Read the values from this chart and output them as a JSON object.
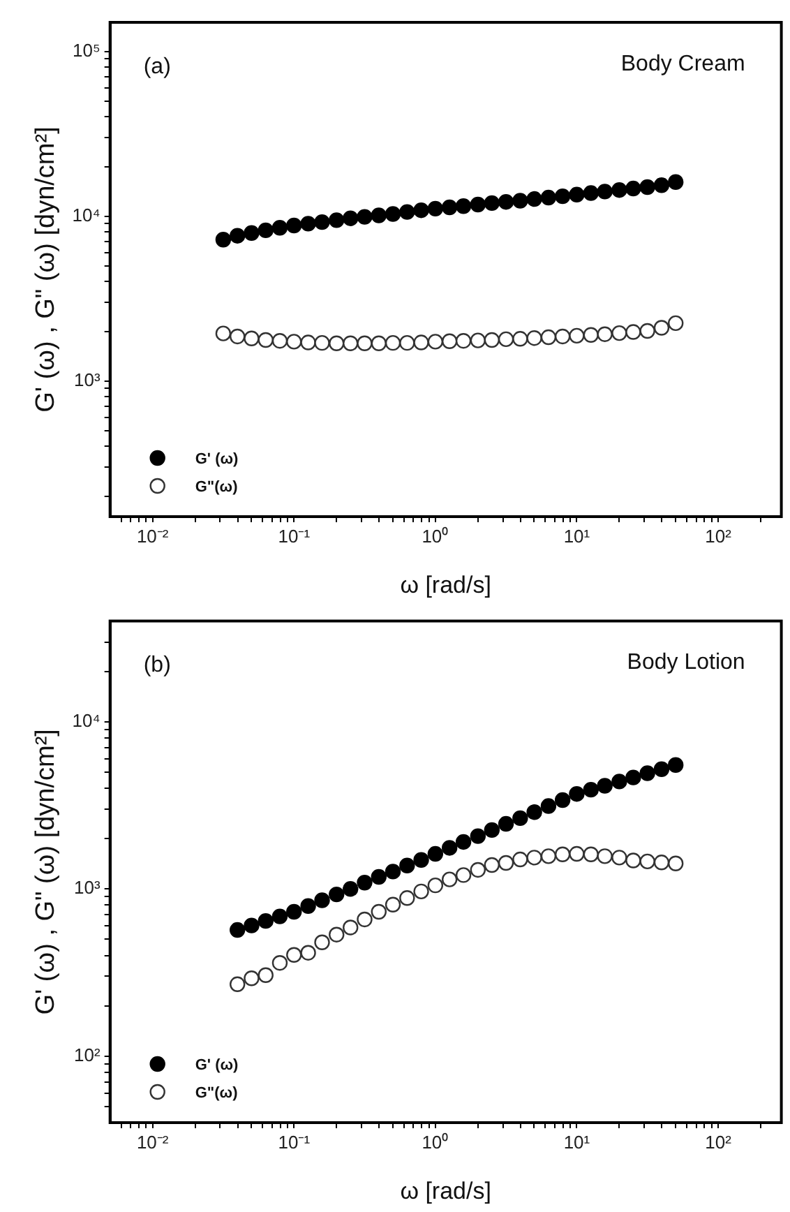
{
  "chart_data": [
    {
      "type": "scatter",
      "xlabel": "ω [rad/s]",
      "ylabel": "G' (ω) , G\" (ω) [dyn/cm²]",
      "annotations": [
        "(a)",
        "Body Cream"
      ],
      "log": "xy",
      "legend": "bottom left",
      "marker": "circle",
      "x": [
        0.0316,
        0.0398,
        0.0501,
        0.0631,
        0.0794,
        0.1,
        0.126,
        0.158,
        0.2,
        0.251,
        0.316,
        0.398,
        0.501,
        0.631,
        0.794,
        1,
        1.26,
        1.58,
        2,
        2.51,
        3.16,
        3.98,
        5.01,
        6.31,
        7.94,
        10,
        12.6,
        15.8,
        20,
        25.1,
        31.6,
        39.8,
        50.1
      ],
      "series": [
        {
          "name": "G' (ω)",
          "color": "#000000",
          "values": [
            7200,
            7600,
            7900,
            8200,
            8500,
            8770,
            9000,
            9200,
            9450,
            9700,
            9900,
            10100,
            10300,
            10600,
            10850,
            11100,
            11300,
            11500,
            11750,
            12000,
            12200,
            12400,
            12700,
            12950,
            13200,
            13500,
            13800,
            14100,
            14400,
            14700,
            15000,
            15400,
            16100
          ]
        },
        {
          "name": "G\"(ω)",
          "color": "#333333",
          "values": [
            1940,
            1860,
            1810,
            1770,
            1750,
            1730,
            1710,
            1700,
            1690,
            1690,
            1690,
            1690,
            1700,
            1700,
            1710,
            1730,
            1740,
            1750,
            1760,
            1770,
            1790,
            1800,
            1820,
            1840,
            1860,
            1880,
            1900,
            1920,
            1950,
            1980,
            2010,
            2100,
            2240
          ]
        }
      ],
      "xlim": [
        0.005,
        280
      ],
      "ylim": [
        150,
        150000
      ],
      "xticks": [
        {
          "value": 0.006,
          "label": null
        },
        {
          "value": 0.007,
          "label": null
        },
        {
          "value": 0.008,
          "label": null
        },
        {
          "value": 0.009,
          "label": null
        },
        {
          "value": 0.01,
          "label": "10⁻²"
        },
        {
          "value": 0.02,
          "label": null
        },
        {
          "value": 0.03,
          "label": null
        },
        {
          "value": 0.04,
          "label": null
        },
        {
          "value": 0.05,
          "label": null
        },
        {
          "value": 0.06,
          "label": null
        },
        {
          "value": 0.07,
          "label": null
        },
        {
          "value": 0.08,
          "label": null
        },
        {
          "value": 0.09,
          "label": null
        },
        {
          "value": 0.1,
          "label": "10⁻¹"
        },
        {
          "value": 0.2,
          "label": null
        },
        {
          "value": 0.3,
          "label": null
        },
        {
          "value": 0.4,
          "label": null
        },
        {
          "value": 0.5,
          "label": null
        },
        {
          "value": 0.6,
          "label": null
        },
        {
          "value": 0.7,
          "label": null
        },
        {
          "value": 0.8,
          "label": null
        },
        {
          "value": 0.9,
          "label": null
        },
        {
          "value": 1,
          "label": "10⁰"
        },
        {
          "value": 2,
          "label": null
        },
        {
          "value": 3,
          "label": null
        },
        {
          "value": 4,
          "label": null
        },
        {
          "value": 5,
          "label": null
        },
        {
          "value": 6,
          "label": null
        },
        {
          "value": 7,
          "label": null
        },
        {
          "value": 8,
          "label": null
        },
        {
          "value": 9,
          "label": null
        },
        {
          "value": 10,
          "label": "10¹"
        },
        {
          "value": 20,
          "label": null
        },
        {
          "value": 30,
          "label": null
        },
        {
          "value": 40,
          "label": null
        },
        {
          "value": 50,
          "label": null
        },
        {
          "value": 60,
          "label": null
        },
        {
          "value": 70,
          "label": null
        },
        {
          "value": 80,
          "label": null
        },
        {
          "value": 90,
          "label": null
        },
        {
          "value": 100,
          "label": "10²"
        },
        {
          "value": 200,
          "label": null
        }
      ],
      "yticks": [
        {
          "value": 200,
          "label": null
        },
        {
          "value": 300,
          "label": null
        },
        {
          "value": 400,
          "label": null
        },
        {
          "value": 500,
          "label": null
        },
        {
          "value": 600,
          "label": null
        },
        {
          "value": 700,
          "label": null
        },
        {
          "value": 800,
          "label": null
        },
        {
          "value": 900,
          "label": null
        },
        {
          "value": 1000,
          "label": "10³"
        },
        {
          "value": 2000,
          "label": null
        },
        {
          "value": 3000,
          "label": null
        },
        {
          "value": 4000,
          "label": null
        },
        {
          "value": 5000,
          "label": null
        },
        {
          "value": 6000,
          "label": null
        },
        {
          "value": 7000,
          "label": null
        },
        {
          "value": 8000,
          "label": null
        },
        {
          "value": 9000,
          "label": null
        },
        {
          "value": 10000,
          "label": "10⁴"
        },
        {
          "value": 20000,
          "label": null
        },
        {
          "value": 30000,
          "label": null
        },
        {
          "value": 40000,
          "label": null
        },
        {
          "value": 50000,
          "label": null
        },
        {
          "value": 60000,
          "label": null
        },
        {
          "value": 70000,
          "label": null
        },
        {
          "value": 80000,
          "label": null
        },
        {
          "value": 90000,
          "label": null
        },
        {
          "value": 100000,
          "label": "10⁵"
        }
      ]
    },
    {
      "type": "scatter",
      "xlabel": "ω [rad/s]",
      "ylabel": "G' (ω) , G\" (ω) [dyn/cm²]",
      "annotations": [
        "(b)",
        "Body Lotion"
      ],
      "log": "xy",
      "legend": "bottom left",
      "marker": "circle",
      "x": [
        0.0398,
        0.0501,
        0.0631,
        0.0794,
        0.1,
        0.126,
        0.158,
        0.2,
        0.251,
        0.316,
        0.398,
        0.501,
        0.631,
        0.794,
        1,
        1.26,
        1.58,
        2,
        2.51,
        3.16,
        3.98,
        5.01,
        6.31,
        7.94,
        10,
        12.6,
        15.8,
        20,
        25.1,
        31.6,
        39.8,
        50.1
      ],
      "series": [
        {
          "name": "G' (ω)",
          "color": "#000000",
          "values": [
            568,
            604,
            643,
            685,
            730,
            790,
            855,
            927,
            1000,
            1090,
            1180,
            1270,
            1380,
            1490,
            1620,
            1760,
            1910,
            2070,
            2250,
            2450,
            2650,
            2880,
            3130,
            3400,
            3700,
            3920,
            4140,
            4390,
            4640,
            4920,
            5200,
            5510
          ]
        },
        {
          "name": "G\"(ω)",
          "color": "#333333",
          "values": [
            269,
            292,
            305,
            361,
            403,
            415,
            479,
            533,
            588,
            657,
            730,
            805,
            882,
            966,
            1050,
            1140,
            1210,
            1300,
            1390,
            1430,
            1500,
            1540,
            1570,
            1610,
            1620,
            1610,
            1570,
            1540,
            1480,
            1460,
            1440,
            1420
          ]
        }
      ],
      "xlim": [
        0.005,
        280
      ],
      "ylim": [
        40,
        40000
      ],
      "xticks": [
        {
          "value": 0.006,
          "label": null
        },
        {
          "value": 0.007,
          "label": null
        },
        {
          "value": 0.008,
          "label": null
        },
        {
          "value": 0.009,
          "label": null
        },
        {
          "value": 0.01,
          "label": "10⁻²"
        },
        {
          "value": 0.02,
          "label": null
        },
        {
          "value": 0.03,
          "label": null
        },
        {
          "value": 0.04,
          "label": null
        },
        {
          "value": 0.05,
          "label": null
        },
        {
          "value": 0.06,
          "label": null
        },
        {
          "value": 0.07,
          "label": null
        },
        {
          "value": 0.08,
          "label": null
        },
        {
          "value": 0.09,
          "label": null
        },
        {
          "value": 0.1,
          "label": "10⁻¹"
        },
        {
          "value": 0.2,
          "label": null
        },
        {
          "value": 0.3,
          "label": null
        },
        {
          "value": 0.4,
          "label": null
        },
        {
          "value": 0.5,
          "label": null
        },
        {
          "value": 0.6,
          "label": null
        },
        {
          "value": 0.7,
          "label": null
        },
        {
          "value": 0.8,
          "label": null
        },
        {
          "value": 0.9,
          "label": null
        },
        {
          "value": 1,
          "label": "10⁰"
        },
        {
          "value": 2,
          "label": null
        },
        {
          "value": 3,
          "label": null
        },
        {
          "value": 4,
          "label": null
        },
        {
          "value": 5,
          "label": null
        },
        {
          "value": 6,
          "label": null
        },
        {
          "value": 7,
          "label": null
        },
        {
          "value": 8,
          "label": null
        },
        {
          "value": 9,
          "label": null
        },
        {
          "value": 10,
          "label": "10¹"
        },
        {
          "value": 20,
          "label": null
        },
        {
          "value": 30,
          "label": null
        },
        {
          "value": 40,
          "label": null
        },
        {
          "value": 50,
          "label": null
        },
        {
          "value": 60,
          "label": null
        },
        {
          "value": 70,
          "label": null
        },
        {
          "value": 80,
          "label": null
        },
        {
          "value": 90,
          "label": null
        },
        {
          "value": 100,
          "label": "10²"
        },
        {
          "value": 200,
          "label": null
        }
      ],
      "yticks": [
        {
          "value": 50,
          "label": null
        },
        {
          "value": 60,
          "label": null
        },
        {
          "value": 70,
          "label": null
        },
        {
          "value": 80,
          "label": null
        },
        {
          "value": 90,
          "label": null
        },
        {
          "value": 100,
          "label": "10²"
        },
        {
          "value": 200,
          "label": null
        },
        {
          "value": 300,
          "label": null
        },
        {
          "value": 400,
          "label": null
        },
        {
          "value": 500,
          "label": null
        },
        {
          "value": 600,
          "label": null
        },
        {
          "value": 700,
          "label": null
        },
        {
          "value": 800,
          "label": null
        },
        {
          "value": 900,
          "label": null
        },
        {
          "value": 1000,
          "label": "10³"
        },
        {
          "value": 2000,
          "label": null
        },
        {
          "value": 3000,
          "label": null
        },
        {
          "value": 4000,
          "label": null
        },
        {
          "value": 5000,
          "label": null
        },
        {
          "value": 6000,
          "label": null
        },
        {
          "value": 7000,
          "label": null
        },
        {
          "value": 8000,
          "label": null
        },
        {
          "value": 9000,
          "label": null
        },
        {
          "value": 10000,
          "label": "10⁴"
        },
        {
          "value": 20000,
          "label": null
        },
        {
          "value": 30000,
          "label": null
        }
      ]
    }
  ]
}
